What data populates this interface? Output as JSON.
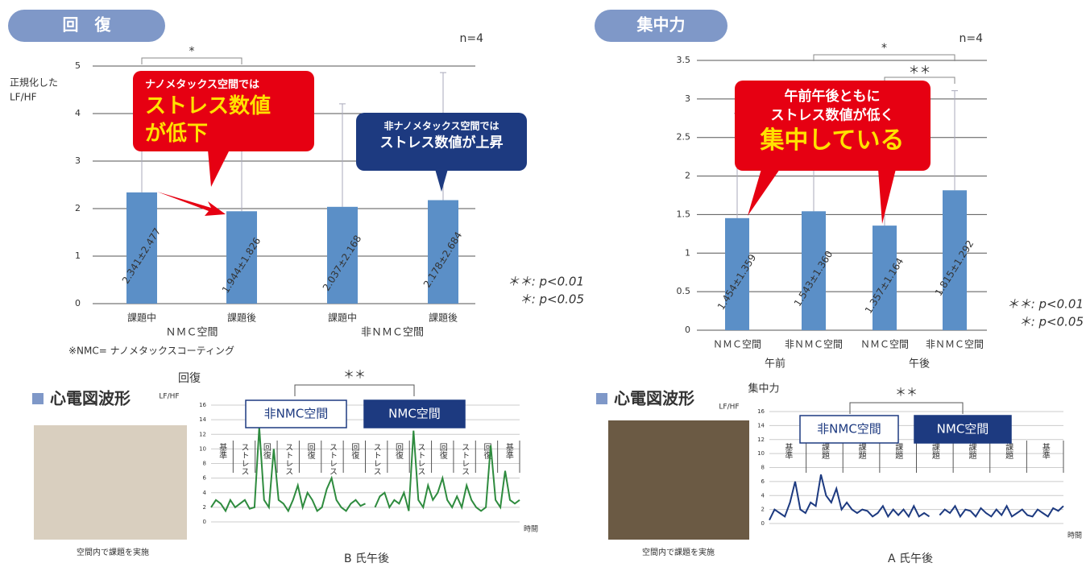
{
  "chart_data": [
    {
      "type": "bar",
      "title": "回　復",
      "n_label": "n=4",
      "ylabel": [
        "正規化した",
        "LF/HF"
      ],
      "categories": [
        "課題中",
        "課題後",
        "課題中",
        "課題後"
      ],
      "groups": [
        "ＮＭＣ空間",
        "非ＮＭＣ空間"
      ],
      "values": [
        2.341,
        1.944,
        2.037,
        2.178
      ],
      "errors": [
        2.477,
        1.826,
        2.168,
        2.684
      ],
      "value_labels": [
        "2.341±2.477",
        "1.944±1.826",
        "2.037±2.168",
        "2.178±2.684"
      ],
      "color": "#5b8fc7",
      "ylim": [
        0,
        5
      ],
      "yticks": [
        0,
        1,
        2,
        3,
        4,
        5
      ],
      "grid": true,
      "significance": [
        "*"
      ],
      "p_notes": [
        "＊＊: p<0.01",
        "＊: p<0.05"
      ],
      "footnote": "※NMC= ナノメタックスコーティング",
      "callouts": [
        {
          "lines": [
            "ナノメタックス空間では",
            "ストレス数値",
            "が低下"
          ]
        },
        {
          "lines": [
            "非ナノメタックス空間では",
            "ストレス数値が上昇"
          ]
        }
      ]
    },
    {
      "type": "bar",
      "title": "集中力",
      "n_label": "n=4",
      "categories": [
        "ＮＭＣ空間",
        "非ＮＭＣ空間",
        "ＮＭＣ空間",
        "非ＮＭＣ空間"
      ],
      "groups": [
        "午前",
        "午後"
      ],
      "values": [
        1.454,
        1.543,
        1.357,
        1.815
      ],
      "errors": [
        1.359,
        1.36,
        1.164,
        1.292
      ],
      "value_labels": [
        "1.454±1.359",
        "1.543±1.360",
        "1.357±1.164",
        "1.815±1.292"
      ],
      "color": "#5b8fc7",
      "ylim": [
        0,
        3.5
      ],
      "yticks": [
        0,
        0.5,
        1,
        1.5,
        2,
        2.5,
        3,
        3.5
      ],
      "grid": true,
      "significance": [
        "*",
        "＊＊"
      ],
      "p_notes": [
        "＊＊: p<0.01",
        "＊: p<0.05"
      ],
      "callouts": [
        {
          "lines": [
            "午前午後ともに",
            "ストレス数値が低く",
            "集中している"
          ]
        }
      ]
    },
    {
      "type": "line",
      "section": "心電図波形",
      "photo_caption": "空間内で課題を実施",
      "ylabel": [
        "回復",
        "LF/HF"
      ],
      "xlabel": "時間",
      "title": "B 氏午後",
      "legend_boxes": [
        "非NMC空間",
        "NMC空間"
      ],
      "significance": [
        "＊＊"
      ],
      "segments": [
        "基準",
        "ストレス",
        "回復",
        "ストレス",
        "回復",
        "ストレス",
        "回復",
        "ストレス",
        "回復",
        "ストレス",
        "回復",
        "ストレス",
        "回復",
        "基準"
      ],
      "series": [
        {
          "color": "#2e8b3e",
          "values": [
            2,
            3,
            2.5,
            1.5,
            3,
            2,
            2.5,
            3,
            1.8,
            2,
            13,
            3,
            2,
            10,
            3,
            2.5,
            1.5,
            3,
            5,
            2,
            4,
            3,
            1.5,
            2,
            4.5,
            6,
            3,
            2,
            1.5,
            2.5,
            3,
            2.2,
            2.5,
            null,
            2,
            3.5,
            4,
            2,
            3,
            2.5,
            4,
            1.5,
            12.5,
            3,
            2,
            5,
            3,
            4,
            6,
            3,
            2,
            3.5,
            2,
            5,
            3,
            2,
            1.5,
            2,
            10.5,
            3,
            2,
            7,
            3,
            2.5,
            3
          ]
        }
      ],
      "ylim": [
        0,
        16
      ],
      "yticks": [
        0,
        2,
        4,
        6,
        8,
        10,
        12,
        14,
        16
      ],
      "grid": true
    },
    {
      "type": "line",
      "section": "心電図波形",
      "photo_caption": "空間内で課題を実施",
      "ylabel": [
        "集中力",
        "LF/HF"
      ],
      "xlabel": "時間",
      "title": "A 氏午後",
      "legend_boxes": [
        "非NMC空間",
        "NMC空間"
      ],
      "significance": [
        "＊＊"
      ],
      "segments": [
        "基準",
        "課題",
        "課題",
        "課題",
        "課題",
        "課題",
        "課題",
        "基準"
      ],
      "series": [
        {
          "color": "#1d3a80",
          "values": [
            0.5,
            2,
            1.5,
            1,
            3,
            6,
            2,
            1.5,
            3,
            2.5,
            7,
            4,
            3,
            5,
            2,
            3,
            2,
            1.5,
            2,
            1.8,
            1,
            1.5,
            2.5,
            1,
            2,
            1.2,
            2,
            1,
            2.5,
            1,
            1.5,
            1,
            null,
            1.2,
            2,
            1.5,
            2.5,
            1,
            2,
            1.8,
            1,
            2.2,
            1.5,
            1,
            2,
            1.2,
            2.5,
            1,
            1.5,
            2,
            1.2,
            1,
            2,
            1.5,
            1,
            2.2,
            1.8,
            2.5
          ]
        }
      ],
      "ylim": [
        0,
        16
      ],
      "yticks": [
        0,
        2,
        4,
        6,
        8,
        10,
        12,
        14,
        16
      ],
      "grid": true
    }
  ]
}
